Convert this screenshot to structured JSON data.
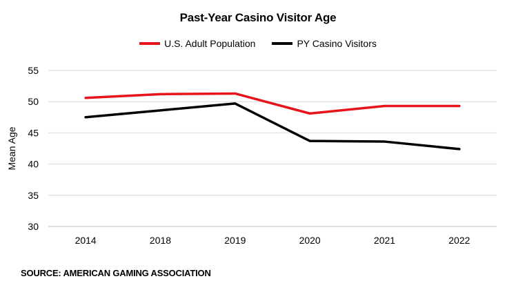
{
  "chart_data": {
    "type": "line",
    "title": "Past-Year Casino Visitor Age",
    "xlabel": "",
    "ylabel": "Mean Age",
    "categories": [
      "2014",
      "2018",
      "2019",
      "2020",
      "2021",
      "2022"
    ],
    "ylim": [
      30,
      55
    ],
    "yticks": [
      30,
      35,
      40,
      45,
      50,
      55
    ],
    "grid": true,
    "legend_position": "top-center",
    "series": [
      {
        "name": "U.S. Adult Population",
        "color": "#e8141b",
        "values": [
          50.6,
          51.2,
          51.3,
          48.1,
          49.3,
          49.3
        ]
      },
      {
        "name": "PY Casino Visitors",
        "color": "#000000",
        "values": [
          47.5,
          48.6,
          49.7,
          43.7,
          43.6,
          42.4
        ]
      }
    ]
  },
  "source": "SOURCE: AMERICAN GAMING ASSOCIATION"
}
